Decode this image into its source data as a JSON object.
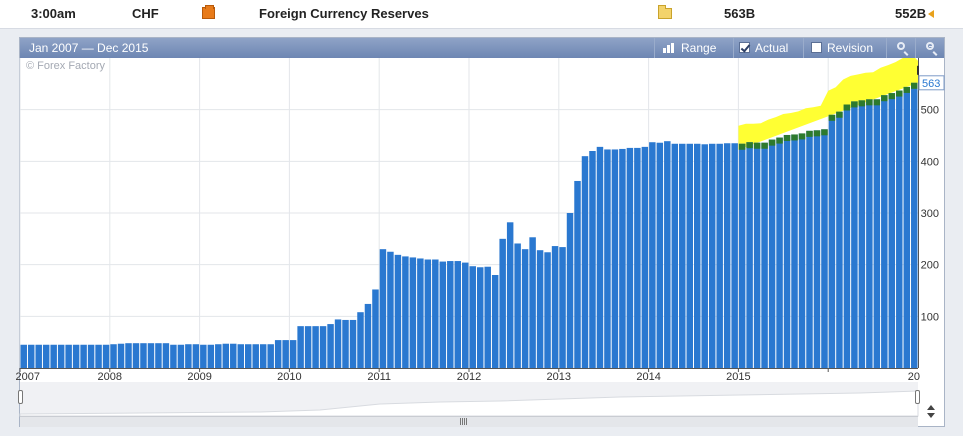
{
  "event_row": {
    "time": "3:00am",
    "currency": "CHF",
    "impact_icon": "orange-impact-icon",
    "event_name": "Foreign Currency Reserves",
    "detail_icon": "folder-icon",
    "actual": "563B",
    "previous": "552B",
    "revision_marker": "orange-left-arrow-icon"
  },
  "chart_panel": {
    "date_range": "Jan 2007 — Dec 2015",
    "buttons": {
      "range_label": "Range",
      "actual_label": "Actual",
      "revision_label": "Revision"
    },
    "actual_checked": true,
    "revision_checked": false,
    "watermark": "© Forex Factory",
    "colors": {
      "bars": "#2a78d0",
      "revision": "#2d7a2d",
      "highlight": "#ffff33",
      "header": "#7c92bc"
    }
  },
  "chart_data": {
    "type": "bar",
    "title": "",
    "xlabel": "",
    "ylabel": "",
    "ylim": [
      0,
      600
    ],
    "y_ticks": [
      100,
      200,
      300,
      400,
      500
    ],
    "x_tick_labels": [
      "2007",
      "2008",
      "2009",
      "2010",
      "2011",
      "2012",
      "2013",
      "2014",
      "2015",
      "20"
    ],
    "current_value_label": "563",
    "grid": true,
    "series": [
      {
        "values": [
          45,
          45,
          45,
          45,
          45,
          45,
          45,
          45,
          45,
          45,
          45,
          45,
          46,
          47,
          48,
          48,
          48,
          48,
          48,
          48,
          45,
          45,
          46,
          46,
          45,
          45,
          46,
          47,
          47,
          46,
          46,
          46,
          46,
          46,
          54,
          54,
          54,
          81,
          81,
          81,
          81,
          85,
          94,
          93,
          93,
          108,
          124,
          152,
          230,
          225,
          219,
          216,
          214,
          212,
          210,
          210,
          206,
          207,
          207,
          204,
          197,
          195,
          196,
          180,
          250,
          282,
          241,
          230,
          253,
          228,
          224,
          236,
          234,
          300,
          362,
          410,
          420,
          428,
          423,
          423,
          424,
          426,
          426,
          428,
          437,
          436,
          439,
          434,
          434,
          434,
          434,
          433,
          434,
          434,
          435,
          435,
          434,
          437,
          436,
          436,
          442,
          446,
          451,
          452,
          454,
          459,
          460,
          462,
          490,
          496,
          510,
          516,
          518,
          520,
          520,
          528,
          532,
          537,
          544,
          552
        ]
      }
    ]
  }
}
